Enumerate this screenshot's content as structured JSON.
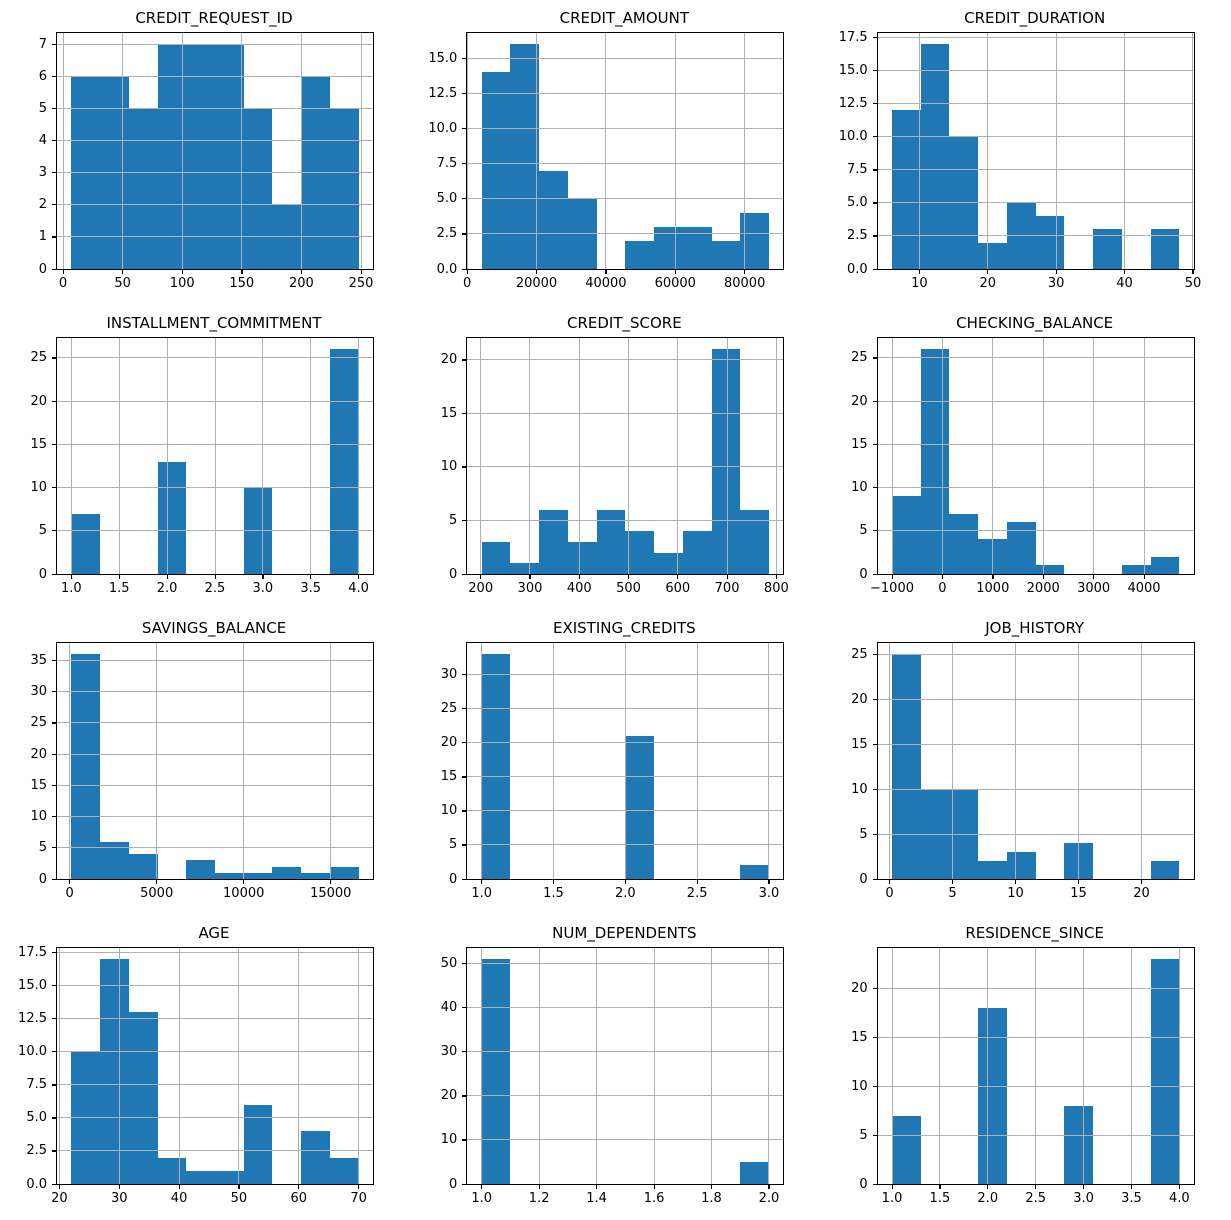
{
  "figure": {
    "background": "#ffffff",
    "bar_color": "#1f77b4",
    "grid_color": "#b0b0b0",
    "spine_color": "#000000",
    "layout": "4 rows x 3 columns of histograms",
    "grid_on": true,
    "samples_per_plot": 56
  },
  "chart_data": {
    "type": "bar",
    "subtype": "histogram_grid",
    "charts": [
      {
        "title": "CREDIT_REQUEST_ID",
        "type": "bar",
        "bin_start": 7,
        "bin_end": 248,
        "bin_count": 10,
        "counts": [
          6,
          6,
          5,
          7,
          7,
          7,
          5,
          2,
          6,
          5
        ],
        "xlim": [
          -5.05,
          260.05
        ],
        "ylim": [
          0,
          7.35
        ],
        "xtick_values": [
          0,
          50,
          100,
          150,
          200,
          250
        ],
        "xtick_labels": [
          "0",
          "50",
          "100",
          "150",
          "200",
          "250"
        ],
        "ytick_values": [
          0,
          1,
          2,
          3,
          4,
          5,
          6,
          7
        ],
        "ytick_labels": [
          "0",
          "1",
          "2",
          "3",
          "4",
          "5",
          "6",
          "7"
        ]
      },
      {
        "title": "CREDIT_AMOUNT",
        "type": "bar",
        "bin_start": 4200,
        "bin_end": 87000,
        "bin_count": 10,
        "counts": [
          14,
          16,
          7,
          5,
          0,
          2,
          3,
          3,
          2,
          4
        ],
        "xlim": [
          60,
          91140
        ],
        "ylim": [
          0,
          16.8
        ],
        "xtick_values": [
          0,
          20000,
          40000,
          60000,
          80000
        ],
        "xtick_labels": [
          "0",
          "20000",
          "40000",
          "60000",
          "80000"
        ],
        "ytick_values": [
          0,
          2.5,
          5,
          7.5,
          10,
          12.5,
          15
        ],
        "ytick_labels": [
          "0.0",
          "2.5",
          "5.0",
          "7.5",
          "10.0",
          "12.5",
          "15.0"
        ]
      },
      {
        "title": "CREDIT_DURATION",
        "type": "bar",
        "bin_start": 6,
        "bin_end": 48,
        "bin_count": 10,
        "counts": [
          12,
          17,
          10,
          2,
          5,
          4,
          0,
          3,
          0,
          3
        ],
        "xlim": [
          3.9,
          50.1
        ],
        "ylim": [
          0,
          17.85
        ],
        "xtick_values": [
          10,
          20,
          30,
          40,
          50
        ],
        "xtick_labels": [
          "10",
          "20",
          "30",
          "40",
          "50"
        ],
        "ytick_values": [
          0,
          2.5,
          5,
          7.5,
          10,
          12.5,
          15,
          17.5
        ],
        "ytick_labels": [
          "0.0",
          "2.5",
          "5.0",
          "7.5",
          "10.0",
          "12.5",
          "15.0",
          "17.5"
        ]
      },
      {
        "title": "INSTALLMENT_COMMITMENT",
        "type": "bar",
        "bin_start": 1,
        "bin_end": 4,
        "bin_count": 10,
        "counts": [
          7,
          0,
          0,
          13,
          0,
          0,
          10,
          0,
          0,
          26
        ],
        "xlim": [
          0.85,
          4.15
        ],
        "ylim": [
          0,
          27.3
        ],
        "xtick_values": [
          1,
          1.5,
          2,
          2.5,
          3,
          3.5,
          4
        ],
        "xtick_labels": [
          "1.0",
          "1.5",
          "2.0",
          "2.5",
          "3.0",
          "3.5",
          "4.0"
        ],
        "ytick_values": [
          0,
          5,
          10,
          15,
          20,
          25
        ],
        "ytick_labels": [
          "0",
          "5",
          "10",
          "15",
          "20",
          "25"
        ]
      },
      {
        "title": "CREDIT_SCORE",
        "type": "bar",
        "bin_start": 202,
        "bin_end": 785,
        "bin_count": 10,
        "counts": [
          3,
          1,
          6,
          3,
          6,
          4,
          2,
          4,
          21,
          6
        ],
        "xlim": [
          172.85,
          814.15
        ],
        "ylim": [
          0,
          22.05
        ],
        "xtick_values": [
          200,
          300,
          400,
          500,
          600,
          700,
          800
        ],
        "xtick_labels": [
          "200",
          "300",
          "400",
          "500",
          "600",
          "700",
          "800"
        ],
        "ytick_values": [
          0,
          5,
          10,
          15,
          20
        ],
        "ytick_labels": [
          "0",
          "5",
          "10",
          "15",
          "20"
        ]
      },
      {
        "title": "CHECKING_BALANCE",
        "type": "bar",
        "bin_start": -1000,
        "bin_end": 4700,
        "bin_count": 10,
        "counts": [
          9,
          26,
          7,
          4,
          6,
          1,
          0,
          0,
          1,
          2
        ],
        "xlim": [
          -1285,
          4985
        ],
        "ylim": [
          0,
          27.3
        ],
        "xtick_values": [
          -1000,
          0,
          1000,
          2000,
          3000,
          4000
        ],
        "xtick_labels": [
          "−1000",
          "0",
          "1000",
          "2000",
          "3000",
          "4000"
        ],
        "ytick_values": [
          0,
          5,
          10,
          15,
          20,
          25
        ],
        "ytick_labels": [
          "0",
          "5",
          "10",
          "15",
          "20",
          "25"
        ]
      },
      {
        "title": "SAVINGS_BALANCE",
        "type": "bar",
        "bin_start": 100,
        "bin_end": 16600,
        "bin_count": 10,
        "counts": [
          36,
          6,
          4,
          0,
          3,
          1,
          1,
          2,
          1,
          2
        ],
        "xlim": [
          -725,
          17425
        ],
        "ylim": [
          0,
          37.8
        ],
        "xtick_values": [
          0,
          5000,
          10000,
          15000
        ],
        "xtick_labels": [
          "0",
          "5000",
          "10000",
          "15000"
        ],
        "ytick_values": [
          0,
          5,
          10,
          15,
          20,
          25,
          30,
          35
        ],
        "ytick_labels": [
          "0",
          "5",
          "10",
          "15",
          "20",
          "25",
          "30",
          "35"
        ]
      },
      {
        "title": "EXISTING_CREDITS",
        "type": "bar",
        "bin_start": 1,
        "bin_end": 3,
        "bin_count": 10,
        "counts": [
          33,
          0,
          0,
          0,
          0,
          21,
          0,
          0,
          0,
          2
        ],
        "xlim": [
          0.9,
          3.1
        ],
        "ylim": [
          0,
          34.65
        ],
        "xtick_values": [
          1,
          1.5,
          2,
          2.5,
          3
        ],
        "xtick_labels": [
          "1.0",
          "1.5",
          "2.0",
          "2.5",
          "3.0"
        ],
        "ytick_values": [
          0,
          5,
          10,
          15,
          20,
          25,
          30
        ],
        "ytick_labels": [
          "0",
          "5",
          "10",
          "15",
          "20",
          "25",
          "30"
        ]
      },
      {
        "title": "JOB_HISTORY",
        "type": "bar",
        "bin_start": 0.2,
        "bin_end": 23,
        "bin_count": 10,
        "counts": [
          25,
          10,
          10,
          2,
          3,
          0,
          4,
          0,
          0,
          2
        ],
        "xlim": [
          -0.94,
          24.14
        ],
        "ylim": [
          0,
          26.25
        ],
        "xtick_values": [
          0,
          5,
          10,
          15,
          20
        ],
        "xtick_labels": [
          "0",
          "5",
          "10",
          "15",
          "20"
        ],
        "ytick_values": [
          0,
          5,
          10,
          15,
          20,
          25
        ],
        "ytick_labels": [
          "0",
          "5",
          "10",
          "15",
          "20",
          "25"
        ]
      },
      {
        "title": "AGE",
        "type": "bar",
        "bin_start": 22,
        "bin_end": 70,
        "bin_count": 10,
        "counts": [
          10,
          17,
          13,
          2,
          1,
          1,
          6,
          0,
          4,
          2
        ],
        "xlim": [
          19.6,
          72.4
        ],
        "ylim": [
          0,
          17.85
        ],
        "xtick_values": [
          20,
          30,
          40,
          50,
          60,
          70
        ],
        "xtick_labels": [
          "20",
          "30",
          "40",
          "50",
          "60",
          "70"
        ],
        "ytick_values": [
          0,
          2.5,
          5,
          7.5,
          10,
          12.5,
          15,
          17.5
        ],
        "ytick_labels": [
          "0.0",
          "2.5",
          "5.0",
          "7.5",
          "10.0",
          "12.5",
          "15.0",
          "17.5"
        ]
      },
      {
        "title": "NUM_DEPENDENTS",
        "type": "bar",
        "bin_start": 1,
        "bin_end": 2,
        "bin_count": 10,
        "counts": [
          51,
          0,
          0,
          0,
          0,
          0,
          0,
          0,
          0,
          5
        ],
        "xlim": [
          0.95,
          2.05
        ],
        "ylim": [
          0,
          53.55
        ],
        "xtick_values": [
          1,
          1.2,
          1.4,
          1.6,
          1.8,
          2
        ],
        "xtick_labels": [
          "1.0",
          "1.2",
          "1.4",
          "1.6",
          "1.8",
          "2.0"
        ],
        "ytick_values": [
          0,
          10,
          20,
          30,
          40,
          50
        ],
        "ytick_labels": [
          "0",
          "10",
          "20",
          "30",
          "40",
          "50"
        ]
      },
      {
        "title": "RESIDENCE_SINCE",
        "type": "bar",
        "bin_start": 1,
        "bin_end": 4,
        "bin_count": 10,
        "counts": [
          7,
          0,
          0,
          18,
          0,
          0,
          8,
          0,
          0,
          23
        ],
        "xlim": [
          0.85,
          4.15
        ],
        "ylim": [
          0,
          24.15
        ],
        "xtick_values": [
          1,
          1.5,
          2,
          2.5,
          3,
          3.5,
          4
        ],
        "xtick_labels": [
          "1.0",
          "1.5",
          "2.0",
          "2.5",
          "3.0",
          "3.5",
          "4.0"
        ],
        "ytick_values": [
          0,
          5,
          10,
          15,
          20
        ],
        "ytick_labels": [
          "0",
          "5",
          "10",
          "15",
          "20"
        ]
      }
    ]
  }
}
